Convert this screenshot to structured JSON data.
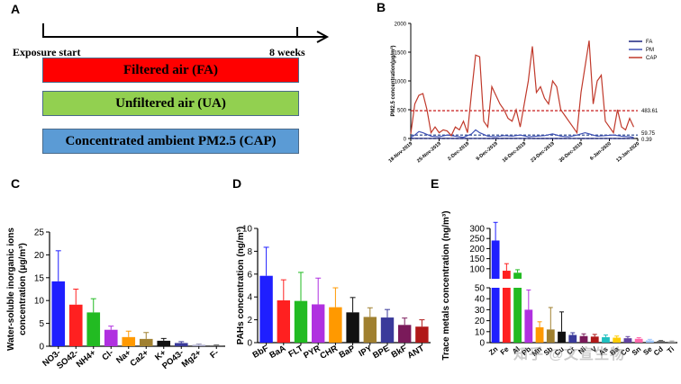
{
  "panels": {
    "a": "A",
    "b": "B",
    "c": "C",
    "d": "D",
    "e": "E"
  },
  "panel_a": {
    "start_label": "Exposure start",
    "end_label": "8 weeks",
    "groups": [
      {
        "label": "Filtered air (FA)",
        "color": "#ff0000"
      },
      {
        "label": "Unfiltered air (UA)",
        "color": "#92d050"
      },
      {
        "label": "Concentrated ambient PM2.5 (CAP)",
        "color": "#5b9bd5"
      }
    ]
  },
  "watermark": "知乎 @文宣生物",
  "chart_data": [
    {
      "id": "B",
      "type": "line",
      "ylabel": "PM2.5 concentration(μg/m³)",
      "ylim": [
        0,
        2000
      ],
      "yticks": [
        0,
        500,
        1000,
        1500,
        2000
      ],
      "xticks": [
        "18-Nov-2019",
        "25-Nov-2019",
        "2-Dec-2019",
        "9-Dec-2019",
        "16-Dec-2019",
        "23-Dec-2019",
        "30-Dec-2019",
        "6-Jan-2020",
        "13-Jan-2020"
      ],
      "xlim": [
        0,
        56
      ],
      "reference_lines": [
        {
          "value": 483.61,
          "label": "483.61",
          "color": "#c00000"
        },
        {
          "value": 59.75,
          "label": "59.75",
          "color": "#1f3c88"
        },
        {
          "value": 0.39,
          "label": "0.39",
          "color": "#000000"
        }
      ],
      "legend": {
        "position": "top-right"
      },
      "series": [
        {
          "name": "FA",
          "color": "#1a237e",
          "x": [
            0,
            4,
            8,
            12,
            16,
            20,
            24,
            28,
            32,
            36,
            40,
            44,
            48,
            52,
            55
          ],
          "y": [
            2,
            1,
            3,
            0,
            1,
            0,
            2,
            1,
            0,
            0,
            1,
            0,
            1,
            0,
            1
          ]
        },
        {
          "name": "PM",
          "color": "#3f51b5",
          "x": [
            0,
            1,
            2,
            3,
            5,
            7,
            9,
            11,
            13,
            15,
            16,
            17,
            19,
            21,
            23,
            25,
            27,
            29,
            31,
            33,
            35,
            37,
            39,
            41,
            43,
            44,
            46,
            48,
            50,
            52,
            54,
            55
          ],
          "y": [
            20,
            60,
            120,
            100,
            40,
            30,
            60,
            40,
            20,
            80,
            150,
            100,
            40,
            30,
            50,
            40,
            60,
            30,
            40,
            50,
            80,
            40,
            30,
            60,
            100,
            80,
            40,
            50,
            60,
            40,
            30,
            20
          ]
        },
        {
          "name": "CAP",
          "color": "#c0392b",
          "x": [
            0,
            1,
            2,
            3,
            4,
            5,
            6,
            7,
            8,
            9,
            10,
            11,
            12,
            13,
            14,
            15,
            16,
            17,
            18,
            19,
            20,
            21,
            22,
            23,
            24,
            25,
            26,
            27,
            28,
            29,
            30,
            31,
            32,
            33,
            34,
            35,
            36,
            37,
            38,
            39,
            40,
            41,
            42,
            43,
            44,
            45,
            46,
            47,
            48,
            49,
            50,
            51,
            52,
            53,
            54,
            55
          ],
          "y": [
            80,
            600,
            750,
            780,
            500,
            100,
            200,
            100,
            150,
            130,
            50,
            200,
            150,
            300,
            100,
            800,
            1450,
            1420,
            300,
            200,
            900,
            750,
            600,
            500,
            350,
            300,
            500,
            200,
            600,
            1000,
            1600,
            800,
            900,
            700,
            600,
            1000,
            900,
            500,
            400,
            300,
            200,
            100,
            800,
            1250,
            1700,
            600,
            1000,
            1100,
            300,
            200,
            100,
            500,
            200,
            150,
            350,
            200
          ]
        }
      ]
    },
    {
      "id": "C",
      "type": "bar",
      "ylabel": "Water-soluble inorganic ions concentration (μg/m³)",
      "ylim": [
        0,
        25
      ],
      "yticks": [
        0,
        5,
        10,
        15,
        20,
        25
      ],
      "categories": [
        "NO3-",
        "SO42-",
        "NH4+",
        "Cl-",
        "Na+",
        "Ca2+",
        "K+",
        "PO43-",
        "Mg2+",
        "F-"
      ],
      "values": [
        14.2,
        9.1,
        7.4,
        3.6,
        2.0,
        1.6,
        1.2,
        0.7,
        0.3,
        0.2
      ],
      "errors": [
        6.7,
        3.4,
        3.0,
        0.8,
        1.3,
        1.4,
        0.5,
        0.3,
        0.2,
        0.1
      ],
      "colors": [
        "#1f1fff",
        "#ff2020",
        "#22bb22",
        "#b030e0",
        "#ff9900",
        "#a08030",
        "#111111",
        "#3a3a9a",
        "#a0a0c0",
        "#707070"
      ]
    },
    {
      "id": "D",
      "type": "bar",
      "ylabel": "PAHs concentration (ng/m³)",
      "ylim": [
        0,
        10
      ],
      "yticks": [
        0,
        2,
        4,
        6,
        8,
        10
      ],
      "categories": [
        "BbF",
        "BaA",
        "FLT",
        "PYR",
        "CHR",
        "BaP",
        "IPY",
        "BPE",
        "BkF",
        "ANT"
      ],
      "values": [
        5.85,
        3.7,
        3.65,
        3.35,
        3.1,
        2.65,
        2.25,
        2.2,
        1.55,
        1.4
      ],
      "errors": [
        2.5,
        1.8,
        2.5,
        2.3,
        1.7,
        1.3,
        0.8,
        0.7,
        0.6,
        0.6
      ],
      "colors": [
        "#1f1fff",
        "#ff2020",
        "#22bb22",
        "#b030e0",
        "#ff9900",
        "#111111",
        "#a08030",
        "#3a3a9a",
        "#7a1a5a",
        "#b01818"
      ]
    },
    {
      "id": "E",
      "type": "bar",
      "ylabel": "Trace metals concentration (ng/m³)",
      "axis_break": {
        "lower": [
          0,
          50
        ],
        "upper": [
          50,
          300
        ]
      },
      "yticks_lower": [
        0,
        10,
        20,
        30,
        40,
        50
      ],
      "yticks_upper": [
        100,
        150,
        200,
        250,
        300
      ],
      "categories": [
        "Zn",
        "Fe",
        "Al",
        "Pb",
        "Mn",
        "Sb",
        "Cu",
        "Cr",
        "Ni",
        "V",
        "As",
        "Ba",
        "Co",
        "Sn",
        "Se",
        "Cd",
        "Ti"
      ],
      "values": [
        240,
        90,
        80,
        30,
        14,
        12,
        10,
        7,
        6,
        5.5,
        5,
        4.5,
        4,
        3.5,
        2,
        1.5,
        1
      ],
      "errors": [
        90,
        35,
        15,
        18,
        5,
        20,
        18,
        2,
        2,
        2,
        2,
        1.5,
        1.5,
        1,
        1,
        0.5,
        0.5
      ],
      "colors": [
        "#1f1fff",
        "#ff2020",
        "#22bb22",
        "#b030e0",
        "#ff9900",
        "#a08030",
        "#111111",
        "#3a3a9a",
        "#7a1a5a",
        "#b01818",
        "#20c0c0",
        "#ffcc00",
        "#6040a0",
        "#ff66aa",
        "#a0c8ff",
        "#606060",
        "#9a9a9a"
      ]
    }
  ]
}
